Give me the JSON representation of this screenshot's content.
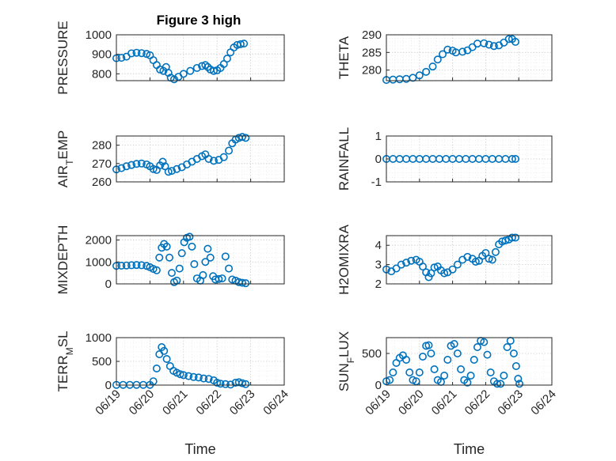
{
  "figure": {
    "title": "Figure 3 high",
    "marker_color": "#0072bd"
  },
  "chart_data": [
    {
      "type": "scatter",
      "name": "pressure",
      "ylabel": "PRESSURE",
      "xlabel": "",
      "xlim": [
        "06/19",
        "06/24"
      ],
      "ylim": [
        765,
        1000
      ],
      "yticks": [
        800,
        900,
        1000
      ],
      "xtick_labels": [],
      "points": [
        [
          0.0,
          880
        ],
        [
          0.15,
          882
        ],
        [
          0.3,
          888
        ],
        [
          0.45,
          905
        ],
        [
          0.6,
          908
        ],
        [
          0.75,
          906
        ],
        [
          0.9,
          902
        ],
        [
          1.0,
          895
        ],
        [
          1.1,
          870
        ],
        [
          1.2,
          845
        ],
        [
          1.3,
          822
        ],
        [
          1.4,
          815
        ],
        [
          1.48,
          835
        ],
        [
          1.55,
          805
        ],
        [
          1.62,
          780
        ],
        [
          1.72,
          772
        ],
        [
          1.85,
          785
        ],
        [
          2.0,
          800
        ],
        [
          2.2,
          815
        ],
        [
          2.4,
          830
        ],
        [
          2.55,
          840
        ],
        [
          2.65,
          845
        ],
        [
          2.72,
          835
        ],
        [
          2.8,
          822
        ],
        [
          2.9,
          815
        ],
        [
          3.0,
          818
        ],
        [
          3.1,
          830
        ],
        [
          3.2,
          850
        ],
        [
          3.3,
          878
        ],
        [
          3.4,
          910
        ],
        [
          3.5,
          935
        ],
        [
          3.6,
          948
        ],
        [
          3.7,
          952
        ],
        [
          3.8,
          955
        ]
      ]
    },
    {
      "type": "scatter",
      "name": "theta",
      "ylabel": "THETA",
      "xlabel": "",
      "xlim": [
        "06/19",
        "06/24"
      ],
      "ylim": [
        277,
        290
      ],
      "yticks": [
        280,
        285,
        290
      ],
      "xtick_labels": [],
      "points": [
        [
          0.0,
          277.2
        ],
        [
          0.2,
          277.3
        ],
        [
          0.4,
          277.4
        ],
        [
          0.6,
          277.5
        ],
        [
          0.8,
          277.8
        ],
        [
          1.0,
          278.5
        ],
        [
          1.2,
          279.5
        ],
        [
          1.4,
          281.0
        ],
        [
          1.55,
          283.0
        ],
        [
          1.7,
          284.5
        ],
        [
          1.85,
          285.8
        ],
        [
          2.0,
          285.5
        ],
        [
          2.1,
          285.0
        ],
        [
          2.3,
          285.2
        ],
        [
          2.45,
          285.6
        ],
        [
          2.6,
          286.5
        ],
        [
          2.75,
          287.5
        ],
        [
          2.95,
          287.6
        ],
        [
          3.1,
          287.2
        ],
        [
          3.25,
          286.8
        ],
        [
          3.4,
          287.0
        ],
        [
          3.55,
          287.8
        ],
        [
          3.7,
          288.8
        ],
        [
          3.8,
          288.8
        ],
        [
          3.9,
          288.0
        ]
      ]
    },
    {
      "type": "scatter",
      "name": "air-temp",
      "ylabel": "AIR_TEMP",
      "xlabel": "",
      "xlim": [
        "06/19",
        "06/24"
      ],
      "ylim": [
        260,
        285
      ],
      "yticks": [
        260,
        270,
        280
      ],
      "xtick_labels": [],
      "points": [
        [
          0.0,
          266.8
        ],
        [
          0.15,
          267.5
        ],
        [
          0.3,
          268.5
        ],
        [
          0.45,
          269.2
        ],
        [
          0.6,
          269.8
        ],
        [
          0.75,
          270.0
        ],
        [
          0.9,
          269.5
        ],
        [
          1.0,
          268.5
        ],
        [
          1.1,
          267.0
        ],
        [
          1.2,
          266.5
        ],
        [
          1.3,
          269.0
        ],
        [
          1.38,
          271.0
        ],
        [
          1.45,
          268.5
        ],
        [
          1.55,
          265.5
        ],
        [
          1.65,
          266.0
        ],
        [
          1.8,
          267.0
        ],
        [
          1.95,
          268.0
        ],
        [
          2.1,
          269.5
        ],
        [
          2.25,
          271.0
        ],
        [
          2.4,
          272.5
        ],
        [
          2.55,
          274.0
        ],
        [
          2.65,
          275.0
        ],
        [
          2.75,
          272.5
        ],
        [
          2.9,
          271.5
        ],
        [
          3.05,
          272.0
        ],
        [
          3.2,
          273.5
        ],
        [
          3.35,
          277.0
        ],
        [
          3.45,
          281.0
        ],
        [
          3.55,
          283.0
        ],
        [
          3.65,
          284.0
        ],
        [
          3.75,
          284.5
        ],
        [
          3.85,
          284.0
        ]
      ]
    },
    {
      "type": "scatter",
      "name": "rainfall",
      "ylabel": "RAINFALL",
      "xlabel": "",
      "xlim": [
        "06/19",
        "06/24"
      ],
      "ylim": [
        -1,
        1
      ],
      "yticks": [
        -1,
        0,
        1
      ],
      "xtick_labels": [],
      "points": [
        [
          0.0,
          0
        ],
        [
          0.2,
          0
        ],
        [
          0.4,
          0
        ],
        [
          0.6,
          0
        ],
        [
          0.8,
          0
        ],
        [
          1.0,
          0
        ],
        [
          1.2,
          0
        ],
        [
          1.4,
          0
        ],
        [
          1.6,
          0
        ],
        [
          1.8,
          0
        ],
        [
          2.0,
          0
        ],
        [
          2.2,
          0
        ],
        [
          2.4,
          0
        ],
        [
          2.6,
          0
        ],
        [
          2.8,
          0
        ],
        [
          3.0,
          0
        ],
        [
          3.2,
          0
        ],
        [
          3.4,
          0
        ],
        [
          3.6,
          0
        ],
        [
          3.8,
          0
        ],
        [
          3.9,
          0
        ]
      ]
    },
    {
      "type": "scatter",
      "name": "mixdepth",
      "ylabel": "MIXDEPTH",
      "xlabel": "",
      "xlim": [
        "06/19",
        "06/24"
      ],
      "ylim": [
        0,
        2200
      ],
      "yticks": [
        0,
        1000,
        2000
      ],
      "xtick_labels": [],
      "points": [
        [
          0.0,
          820
        ],
        [
          0.15,
          830
        ],
        [
          0.3,
          840
        ],
        [
          0.45,
          850
        ],
        [
          0.6,
          860
        ],
        [
          0.75,
          850
        ],
        [
          0.9,
          820
        ],
        [
          1.0,
          760
        ],
        [
          1.1,
          680
        ],
        [
          1.2,
          620
        ],
        [
          1.28,
          1200
        ],
        [
          1.35,
          1650
        ],
        [
          1.42,
          1820
        ],
        [
          1.5,
          1700
        ],
        [
          1.58,
          1200
        ],
        [
          1.65,
          500
        ],
        [
          1.72,
          80
        ],
        [
          1.8,
          150
        ],
        [
          1.88,
          700
        ],
        [
          1.95,
          1400
        ],
        [
          2.02,
          1900
        ],
        [
          2.1,
          2100
        ],
        [
          2.18,
          2150
        ],
        [
          2.25,
          1700
        ],
        [
          2.32,
          900
        ],
        [
          2.4,
          250
        ],
        [
          2.5,
          150
        ],
        [
          2.58,
          400
        ],
        [
          2.65,
          1000
        ],
        [
          2.72,
          1600
        ],
        [
          2.8,
          1200
        ],
        [
          2.88,
          350
        ],
        [
          2.95,
          200
        ],
        [
          3.05,
          220
        ],
        [
          3.15,
          250
        ],
        [
          3.25,
          1250
        ],
        [
          3.35,
          700
        ],
        [
          3.45,
          200
        ],
        [
          3.55,
          150
        ],
        [
          3.65,
          80
        ],
        [
          3.75,
          50
        ],
        [
          3.85,
          30
        ]
      ]
    },
    {
      "type": "scatter",
      "name": "h2omixra",
      "ylabel": "H2OMIXRA",
      "xlabel": "",
      "xlim": [
        "06/19",
        "06/24"
      ],
      "ylim": [
        2,
        4.5
      ],
      "yticks": [
        2,
        3,
        4
      ],
      "xtick_labels": [],
      "points": [
        [
          0.0,
          2.75
        ],
        [
          0.15,
          2.65
        ],
        [
          0.3,
          2.8
        ],
        [
          0.45,
          3.0
        ],
        [
          0.6,
          3.1
        ],
        [
          0.75,
          3.2
        ],
        [
          0.9,
          3.25
        ],
        [
          1.0,
          3.15
        ],
        [
          1.1,
          2.9
        ],
        [
          1.2,
          2.6
        ],
        [
          1.28,
          2.35
        ],
        [
          1.35,
          2.55
        ],
        [
          1.45,
          2.85
        ],
        [
          1.55,
          2.9
        ],
        [
          1.65,
          2.7
        ],
        [
          1.75,
          2.55
        ],
        [
          1.85,
          2.6
        ],
        [
          2.0,
          2.75
        ],
        [
          2.15,
          3.0
        ],
        [
          2.3,
          3.25
        ],
        [
          2.45,
          3.4
        ],
        [
          2.6,
          3.3
        ],
        [
          2.7,
          3.15
        ],
        [
          2.8,
          3.2
        ],
        [
          2.9,
          3.45
        ],
        [
          3.0,
          3.6
        ],
        [
          3.1,
          3.3
        ],
        [
          3.2,
          3.25
        ],
        [
          3.3,
          3.65
        ],
        [
          3.4,
          4.05
        ],
        [
          3.5,
          4.2
        ],
        [
          3.6,
          4.25
        ],
        [
          3.7,
          4.3
        ],
        [
          3.8,
          4.4
        ],
        [
          3.9,
          4.4
        ]
      ]
    },
    {
      "type": "scatter",
      "name": "terr-msl",
      "ylabel": "TERR_MSL",
      "xlabel": "Time",
      "xlim": [
        "06/19",
        "06/24"
      ],
      "ylim": [
        0,
        1000
      ],
      "yticks": [
        0,
        500,
        1000
      ],
      "xtick_labels": [
        "06/19",
        "06/20",
        "06/21",
        "06/22",
        "06/23",
        "06/24"
      ],
      "points": [
        [
          0.0,
          5
        ],
        [
          0.2,
          5
        ],
        [
          0.4,
          5
        ],
        [
          0.6,
          5
        ],
        [
          0.8,
          5
        ],
        [
          1.0,
          5
        ],
        [
          1.1,
          80
        ],
        [
          1.2,
          350
        ],
        [
          1.28,
          650
        ],
        [
          1.35,
          800
        ],
        [
          1.42,
          720
        ],
        [
          1.5,
          550
        ],
        [
          1.6,
          400
        ],
        [
          1.7,
          300
        ],
        [
          1.8,
          260
        ],
        [
          1.9,
          230
        ],
        [
          2.0,
          210
        ],
        [
          2.15,
          190
        ],
        [
          2.3,
          170
        ],
        [
          2.45,
          160
        ],
        [
          2.6,
          140
        ],
        [
          2.75,
          130
        ],
        [
          2.9,
          100
        ],
        [
          3.0,
          50
        ],
        [
          3.1,
          30
        ],
        [
          3.25,
          20
        ],
        [
          3.4,
          10
        ],
        [
          3.55,
          50
        ],
        [
          3.65,
          60
        ],
        [
          3.75,
          40
        ],
        [
          3.85,
          20
        ]
      ]
    },
    {
      "type": "scatter",
      "name": "sun-flux",
      "ylabel": "SUN_FLUX",
      "xlabel": "Time",
      "xlim": [
        "06/19",
        "06/24"
      ],
      "ylim": [
        0,
        750
      ],
      "yticks": [
        0,
        500
      ],
      "xtick_labels": [
        "06/19",
        "06/20",
        "06/21",
        "06/22",
        "06/23",
        "06/24"
      ],
      "points": [
        [
          0.0,
          60
        ],
        [
          0.1,
          80
        ],
        [
          0.2,
          200
        ],
        [
          0.3,
          350
        ],
        [
          0.4,
          430
        ],
        [
          0.5,
          470
        ],
        [
          0.6,
          400
        ],
        [
          0.7,
          200
        ],
        [
          0.8,
          80
        ],
        [
          0.9,
          60
        ],
        [
          1.0,
          200
        ],
        [
          1.1,
          450
        ],
        [
          1.2,
          620
        ],
        [
          1.28,
          630
        ],
        [
          1.35,
          500
        ],
        [
          1.45,
          250
        ],
        [
          1.55,
          80
        ],
        [
          1.65,
          50
        ],
        [
          1.75,
          150
        ],
        [
          1.85,
          400
        ],
        [
          1.95,
          620
        ],
        [
          2.05,
          650
        ],
        [
          2.15,
          500
        ],
        [
          2.25,
          250
        ],
        [
          2.35,
          80
        ],
        [
          2.45,
          40
        ],
        [
          2.55,
          150
        ],
        [
          2.65,
          400
        ],
        [
          2.75,
          600
        ],
        [
          2.85,
          700
        ],
        [
          2.95,
          680
        ],
        [
          3.05,
          480
        ],
        [
          3.15,
          200
        ],
        [
          3.25,
          60
        ],
        [
          3.35,
          20
        ],
        [
          3.45,
          20
        ],
        [
          3.55,
          150
        ],
        [
          3.65,
          600
        ],
        [
          3.75,
          700
        ],
        [
          3.85,
          500
        ],
        [
          3.92,
          300
        ],
        [
          3.98,
          100
        ],
        [
          4.02,
          20
        ]
      ]
    }
  ]
}
